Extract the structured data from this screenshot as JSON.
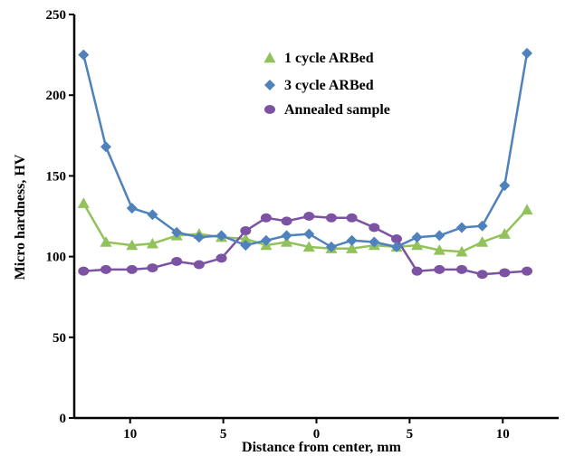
{
  "chart_data": {
    "type": "line",
    "xlabel": "Distance from center, mm",
    "ylabel": "Micro hardness, HV",
    "ylim": [
      0,
      250
    ],
    "y_ticks": [
      0,
      50,
      100,
      150,
      200,
      250
    ],
    "x_ticks": [
      {
        "pos": -10,
        "label": "10"
      },
      {
        "pos": -5,
        "label": "5"
      },
      {
        "pos": 0,
        "label": "0"
      },
      {
        "pos": 5,
        "label": "5"
      },
      {
        "pos": 10,
        "label": "10"
      }
    ],
    "xlim": [
      -13,
      13
    ],
    "x": [
      -12.5,
      -11.3,
      -9.9,
      -8.8,
      -7.5,
      -6.3,
      -5.1,
      -3.8,
      -2.7,
      -1.6,
      -0.4,
      0.8,
      1.9,
      3.1,
      4.3,
      5.4,
      6.6,
      7.8,
      8.9,
      10.1,
      11.3
    ],
    "legend_position": "top-center",
    "grid": false,
    "series": [
      {
        "name": "1 cycle ARBed",
        "color": "#92c25a",
        "marker": "triangle",
        "values": [
          133,
          109,
          107,
          108,
          113,
          114,
          112,
          111,
          107,
          109,
          106,
          105,
          105,
          107,
          106,
          107,
          104,
          103,
          109,
          114,
          129
        ]
      },
      {
        "name": "3 cycle ARBed",
        "color": "#4f81bd",
        "marker": "diamond",
        "values": [
          225,
          168,
          130,
          126,
          115,
          112,
          113,
          107,
          110,
          113,
          114,
          106,
          110,
          109,
          106,
          112,
          113,
          118,
          119,
          144,
          226
        ]
      },
      {
        "name": "Annealed sample",
        "color": "#7c52a3",
        "marker": "circle",
        "values": [
          91,
          92,
          92,
          93,
          97,
          95,
          99,
          116,
          124,
          122,
          125,
          124,
          124,
          118,
          111,
          91,
          92,
          92,
          89,
          90,
          91
        ]
      }
    ]
  }
}
